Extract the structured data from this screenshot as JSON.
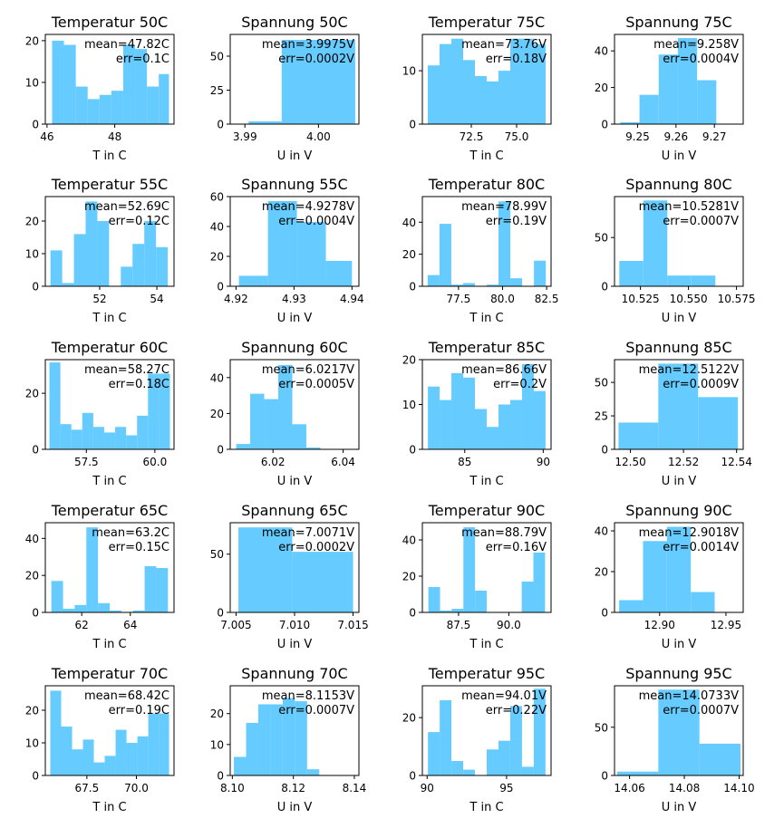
{
  "chart_data": [
    {
      "type": "bar",
      "title": "Temperatur 50C",
      "xlabel": "T in C",
      "ylabel": "",
      "mean_label": "mean=47.82C",
      "err_label": "err=0.1C",
      "bin_edges": [
        46.15,
        46.5,
        46.85,
        47.2,
        47.55,
        47.9,
        48.25,
        48.6,
        48.95,
        49.3,
        49.6
      ],
      "values": [
        20,
        19,
        9,
        6,
        7,
        8,
        19,
        18,
        9,
        12
      ],
      "xlim": [
        45.95,
        49.75
      ],
      "ylim": [
        0,
        21.5
      ],
      "xticks": [
        46,
        48
      ],
      "xtick_labels": [
        "46",
        "48"
      ],
      "yticks": [
        0,
        10,
        20
      ],
      "ytick_labels": [
        "0",
        "10",
        "20"
      ]
    },
    {
      "type": "bar",
      "title": "Spannung 50C",
      "xlabel": "U in V",
      "ylabel": "",
      "mean_label": "mean=3.9975V",
      "err_label": "err=0.0002V",
      "bin_edges": [
        3.9905,
        3.995,
        4.005
      ],
      "values": [
        2,
        62
      ],
      "xlim": [
        3.988,
        4.0055
      ],
      "ylim": [
        0,
        66
      ],
      "xticks": [
        3.99,
        4.0
      ],
      "xtick_labels": [
        "3.99",
        "4.00"
      ],
      "yticks": [
        0,
        25,
        50
      ],
      "ytick_labels": [
        "0",
        "25",
        "50"
      ]
    },
    {
      "type": "bar",
      "title": "Temperatur 75C",
      "xlabel": "T in C",
      "ylabel": "",
      "mean_label": "mean=73.76V",
      "err_label": "err=0.18V",
      "bin_edges": [
        70.1,
        70.75,
        71.4,
        72.05,
        72.7,
        73.35,
        74,
        74.65,
        75.3,
        75.95,
        76.6
      ],
      "values": [
        11,
        15,
        16,
        12,
        9,
        8,
        10,
        16,
        16,
        15
      ],
      "xlim": [
        69.8,
        76.9
      ],
      "ylim": [
        0,
        16.8
      ],
      "xticks": [
        72.5,
        75.0
      ],
      "xtick_labels": [
        "72.5",
        "75.0"
      ],
      "yticks": [
        0,
        10
      ],
      "ytick_labels": [
        "0",
        "10"
      ]
    },
    {
      "type": "bar",
      "title": "Spannung 75C",
      "xlabel": "U in V",
      "ylabel": "",
      "mean_label": "mean=9.258V",
      "err_label": "err=0.0004V",
      "bin_edges": [
        9.2455,
        9.2505,
        9.2555,
        9.2605,
        9.2655,
        9.2705,
        9.2755
      ],
      "values": [
        1,
        16,
        38,
        47,
        24,
        0
      ],
      "xlim": [
        9.244,
        9.2775
      ],
      "ylim": [
        0,
        49
      ],
      "xticks": [
        9.25,
        9.26,
        9.27
      ],
      "xtick_labels": [
        "9.25",
        "9.26",
        "9.27"
      ],
      "yticks": [
        0,
        20,
        40
      ],
      "ytick_labels": [
        "0",
        "20",
        "40"
      ]
    },
    {
      "type": "bar",
      "title": "Temperatur 55C",
      "xlabel": "T in C",
      "ylabel": "",
      "mean_label": "mean=52.69C",
      "err_label": "err=0.12C",
      "bin_edges": [
        50.28,
        50.69,
        51.1,
        51.51,
        51.92,
        52.33,
        52.74,
        53.15,
        53.56,
        53.97,
        54.38
      ],
      "values": [
        11,
        1,
        16,
        26,
        20,
        0,
        6,
        13,
        20,
        12
      ],
      "xlim": [
        50.1,
        54.6
      ],
      "ylim": [
        0,
        27.5
      ],
      "xticks": [
        52,
        54
      ],
      "xtick_labels": [
        "52",
        "54"
      ],
      "yticks": [
        0,
        10,
        20
      ],
      "ytick_labels": [
        "0",
        "10",
        "20"
      ]
    },
    {
      "type": "bar",
      "title": "Spannung 55C",
      "xlabel": "U in V",
      "ylabel": "",
      "mean_label": "mean=4.9278V",
      "err_label": "err=0.0004V",
      "bin_edges": [
        4.9205,
        4.9255,
        4.9305,
        4.9355,
        4.94
      ],
      "values": [
        7,
        57,
        43,
        17
      ],
      "xlim": [
        4.919,
        4.9412
      ],
      "ylim": [
        0,
        60
      ],
      "xticks": [
        4.92,
        4.93,
        4.94
      ],
      "xtick_labels": [
        "4.92",
        "4.93",
        "4.94"
      ],
      "yticks": [
        0,
        20,
        40,
        60
      ],
      "ytick_labels": [
        "0",
        "20",
        "40",
        "60"
      ]
    },
    {
      "type": "bar",
      "title": "Temperatur 80C",
      "xlabel": "T in C",
      "ylabel": "",
      "mean_label": "mean=78.99V",
      "err_label": "err=0.19V",
      "bin_edges": [
        75.75,
        76.42,
        77.09,
        77.76,
        78.43,
        79.1,
        79.77,
        80.44,
        81.11,
        81.78,
        82.45
      ],
      "values": [
        7,
        39,
        1,
        2,
        0,
        1,
        53,
        5,
        0,
        16
      ],
      "xlim": [
        75.45,
        82.75
      ],
      "ylim": [
        0,
        56
      ],
      "xticks": [
        77.5,
        80.0,
        82.5
      ],
      "xtick_labels": [
        "77.5",
        "80.0",
        "82.5"
      ],
      "yticks": [
        0,
        20,
        40
      ],
      "ytick_labels": [
        "0",
        "20",
        "40"
      ]
    },
    {
      "type": "bar",
      "title": "Spannung 80C",
      "xlabel": "U in V",
      "ylabel": "",
      "mean_label": "mean=10.5281V",
      "err_label": "err=0.0007V",
      "bin_edges": [
        10.514,
        10.5265,
        10.539,
        10.5515,
        10.564,
        10.5765
      ],
      "values": [
        26,
        88,
        11,
        11,
        0
      ],
      "xlim": [
        10.5115,
        10.5785
      ],
      "ylim": [
        0,
        92
      ],
      "xticks": [
        10.525,
        10.55,
        10.575
      ],
      "xtick_labels": [
        "10.525",
        "10.550",
        "10.575"
      ],
      "yticks": [
        0,
        50
      ],
      "ytick_labels": [
        "0",
        "50"
      ]
    },
    {
      "type": "bar",
      "title": "Temperatur 60C",
      "xlabel": "T in C",
      "ylabel": "",
      "mean_label": "mean=58.27C",
      "err_label": "err=0.18C",
      "bin_edges": [
        56.15,
        56.55,
        56.95,
        57.35,
        57.75,
        58.15,
        58.55,
        58.95,
        59.35,
        59.75,
        60.15,
        60.55
      ],
      "values": [
        31,
        9,
        7,
        13,
        8,
        6,
        8,
        5,
        12,
        27,
        27
      ],
      "xlim": [
        56.0,
        60.7
      ],
      "ylim": [
        0,
        32
      ],
      "xticks": [
        57.5,
        60.0
      ],
      "xtick_labels": [
        "57.5",
        "60.0"
      ],
      "yticks": [
        0,
        20
      ],
      "ytick_labels": [
        "0",
        "20"
      ]
    },
    {
      "type": "bar",
      "title": "Spannung 60C",
      "xlabel": "U in V",
      "ylabel": "",
      "mean_label": "mean=6.0217V",
      "err_label": "err=0.0005V",
      "bin_edges": [
        6.0095,
        6.0135,
        6.0175,
        6.0215,
        6.0255,
        6.0295,
        6.0335,
        6.0375,
        6.0415
      ],
      "values": [
        3,
        31,
        28,
        47,
        14,
        1,
        0,
        0
      ],
      "xlim": [
        6.0078,
        6.0445
      ],
      "ylim": [
        0,
        50
      ],
      "xticks": [
        6.02,
        6.04
      ],
      "xtick_labels": [
        "6.02",
        "6.04"
      ],
      "yticks": [
        0,
        20,
        40
      ],
      "ytick_labels": [
        "0",
        "20",
        "40"
      ]
    },
    {
      "type": "bar",
      "title": "Temperatur 85C",
      "xlabel": "T in C",
      "ylabel": "",
      "mean_label": "mean=86.66V",
      "err_label": "err=0.2V",
      "bin_edges": [
        82.65,
        83.4,
        84.15,
        84.9,
        85.65,
        86.4,
        87.15,
        87.9,
        88.65,
        89.4,
        90.15
      ],
      "values": [
        14,
        11,
        17,
        16,
        9,
        5,
        10,
        11,
        19,
        13
      ],
      "xlim": [
        82.3,
        90.5
      ],
      "ylim": [
        0,
        20
      ],
      "xticks": [
        85,
        90
      ],
      "xtick_labels": [
        "85",
        "90"
      ],
      "yticks": [
        0,
        10,
        20
      ],
      "ytick_labels": [
        "0",
        "10",
        "20"
      ]
    },
    {
      "type": "bar",
      "title": "Spannung 85C",
      "xlabel": "U in V",
      "ylabel": "",
      "mean_label": "mean=12.5122V",
      "err_label": "err=0.0009V",
      "bin_edges": [
        12.4955,
        12.5105,
        12.5255,
        12.5405
      ],
      "values": [
        20,
        64,
        39
      ],
      "xlim": [
        12.494,
        12.5425
      ],
      "ylim": [
        0,
        67
      ],
      "xticks": [
        12.5,
        12.52,
        12.54
      ],
      "xtick_labels": [
        "12.50",
        "12.52",
        "12.54"
      ],
      "yticks": [
        0,
        25,
        50
      ],
      "ytick_labels": [
        "0",
        "25",
        "50"
      ]
    },
    {
      "type": "bar",
      "title": "Temperatur 65C",
      "xlabel": "T in C",
      "ylabel": "",
      "mean_label": "mean=63.2C",
      "err_label": "err=0.15C",
      "bin_edges": [
        60.75,
        61.23,
        61.71,
        62.19,
        62.67,
        63.15,
        63.63,
        64.11,
        64.59,
        65.07,
        65.55
      ],
      "values": [
        17,
        2,
        4,
        46,
        5,
        1,
        0,
        1,
        25,
        24
      ],
      "xlim": [
        60.5,
        65.8
      ],
      "ylim": [
        0,
        48.5
      ],
      "xticks": [
        62,
        64
      ],
      "xtick_labels": [
        "62",
        "64"
      ],
      "yticks": [
        0,
        20,
        40
      ],
      "ytick_labels": [
        "0",
        "20",
        "40"
      ]
    },
    {
      "type": "bar",
      "title": "Spannung 65C",
      "xlabel": "U in V",
      "ylabel": "",
      "mean_label": "mean=7.0071V",
      "err_label": "err=0.0002V",
      "bin_edges": [
        7.0052,
        7.0098,
        7.015
      ],
      "values": [
        73,
        52
      ],
      "xlim": [
        7.0045,
        7.0155
      ],
      "ylim": [
        0,
        77
      ],
      "xticks": [
        7.005,
        7.01,
        7.015
      ],
      "xtick_labels": [
        "7.005",
        "7.010",
        "7.015"
      ],
      "yticks": [
        0,
        50
      ],
      "ytick_labels": [
        "0",
        "50"
      ]
    },
    {
      "type": "bar",
      "title": "Temperatur 90C",
      "xlabel": "T in C",
      "ylabel": "",
      "mean_label": "mean=88.79V",
      "err_label": "err=0.16V",
      "bin_edges": [
        86.0,
        86.58,
        87.16,
        87.74,
        88.32,
        88.9,
        89.48,
        90.06,
        90.64,
        91.22,
        91.8
      ],
      "values": [
        14,
        1,
        2,
        47,
        12,
        0,
        0,
        0,
        17,
        33
      ],
      "xlim": [
        85.7,
        92.1
      ],
      "ylim": [
        0,
        49.5
      ],
      "xticks": [
        87.5,
        90.0
      ],
      "xtick_labels": [
        "87.5",
        "90.0"
      ],
      "yticks": [
        0,
        20,
        40
      ],
      "ytick_labels": [
        "0",
        "20",
        "40"
      ]
    },
    {
      "type": "bar",
      "title": "Spannung 90C",
      "xlabel": "U in V",
      "ylabel": "",
      "mean_label": "mean=12.9018V",
      "err_label": "err=0.0014V",
      "bin_edges": [
        12.8695,
        12.8875,
        12.9055,
        12.9235,
        12.9415,
        12.9595
      ],
      "values": [
        6,
        35,
        42,
        10,
        0
      ],
      "xlim": [
        12.866,
        12.963
      ],
      "ylim": [
        0,
        44
      ],
      "xticks": [
        12.9,
        12.95
      ],
      "xtick_labels": [
        "12.90",
        "12.95"
      ],
      "yticks": [
        0,
        20,
        40
      ],
      "ytick_labels": [
        "0",
        "20",
        "40"
      ]
    },
    {
      "type": "bar",
      "title": "Temperatur 70C",
      "xlabel": "T in C",
      "ylabel": "",
      "mean_label": "mean=68.42C",
      "err_label": "err=0.19C",
      "bin_edges": [
        65.65,
        66.2,
        66.75,
        67.3,
        67.85,
        68.4,
        68.95,
        69.5,
        70.05,
        70.6,
        71.15,
        71.65
      ],
      "values": [
        26,
        15,
        8,
        11,
        4,
        6,
        14,
        10,
        12,
        19,
        19
      ],
      "xlim": [
        65.4,
        71.9
      ],
      "ylim": [
        0,
        27.5
      ],
      "xticks": [
        67.5,
        70.0
      ],
      "xtick_labels": [
        "67.5",
        "70.0"
      ],
      "yticks": [
        0,
        10,
        20
      ],
      "ytick_labels": [
        "0",
        "10",
        "20"
      ]
    },
    {
      "type": "bar",
      "title": "Spannung 70C",
      "xlabel": "U in V",
      "ylabel": "",
      "mean_label": "mean=8.1153V",
      "err_label": "err=0.0007V",
      "bin_edges": [
        8.1005,
        8.1045,
        8.1085,
        8.1125,
        8.1165,
        8.1205,
        8.1245,
        8.1285,
        8.1325
      ],
      "values": [
        6,
        17,
        23,
        23,
        25,
        24,
        2,
        0
      ],
      "xlim": [
        8.0993,
        8.1415
      ],
      "ylim": [
        0,
        29
      ],
      "xticks": [
        8.1,
        8.12,
        8.14
      ],
      "xtick_labels": [
        "8.10",
        "8.12",
        "8.14"
      ],
      "yticks": [
        0,
        10,
        20
      ],
      "ytick_labels": [
        "0",
        "10",
        "20"
      ]
    },
    {
      "type": "bar",
      "title": "Temperatur 95C",
      "xlabel": "T in C",
      "ylabel": "",
      "mean_label": "mean=94.01V",
      "err_label": "err=0.22V",
      "bin_edges": [
        90.05,
        90.79,
        91.53,
        92.27,
        93.01,
        93.75,
        94.49,
        95.23,
        95.97,
        96.71,
        97.45
      ],
      "values": [
        15,
        26,
        5,
        2,
        0,
        9,
        12,
        24,
        3,
        30
      ],
      "xlim": [
        89.7,
        97.8
      ],
      "ylim": [
        0,
        31
      ],
      "xticks": [
        90,
        95
      ],
      "xtick_labels": [
        "90",
        "95"
      ],
      "yticks": [
        0,
        20
      ],
      "ytick_labels": [
        "0",
        "20"
      ]
    },
    {
      "type": "bar",
      "title": "Spannung 95C",
      "xlabel": "U in V",
      "ylabel": "",
      "mean_label": "mean=14.0733V",
      "err_label": "err=0.0007V",
      "bin_edges": [
        14.0555,
        14.0705,
        14.0855,
        14.1005
      ],
      "values": [
        4,
        89,
        33
      ],
      "xlim": [
        14.0545,
        14.1015
      ],
      "ylim": [
        0,
        93
      ],
      "xticks": [
        14.06,
        14.08,
        14.1
      ],
      "xtick_labels": [
        "14.06",
        "14.08",
        "14.10"
      ],
      "yticks": [
        0,
        50
      ],
      "ytick_labels": [
        "0",
        "50"
      ]
    }
  ],
  "colors": {
    "bar": "#66ccff",
    "axis": "#000000"
  }
}
